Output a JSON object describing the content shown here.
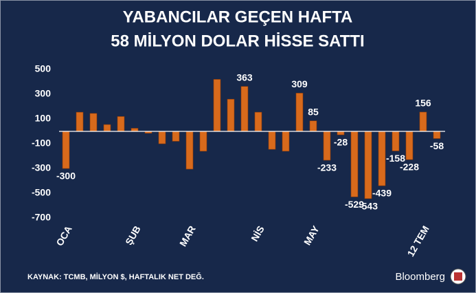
{
  "chart_data": {
    "type": "bar",
    "title": "YABANCILAR GEÇEN HAFTA",
    "subtitle": "58 MİLYON DOLAR HİSSE SATTI",
    "source": "KAYNAK: TCMB, MİLYON $, HAFTALIK NET DEĞ.",
    "brand": "Bloomberg",
    "categories": [
      "OCA",
      null,
      null,
      null,
      null,
      "ŞUB",
      null,
      null,
      null,
      "MAR",
      null,
      null,
      null,
      null,
      "NİS",
      null,
      null,
      null,
      "MAY",
      null,
      null,
      null,
      null,
      null,
      null,
      null,
      "12 TEM",
      null
    ],
    "values": [
      -300,
      155,
      145,
      55,
      120,
      25,
      -15,
      -100,
      -80,
      -305,
      -160,
      420,
      260,
      363,
      155,
      -145,
      -160,
      309,
      85,
      -233,
      -28,
      -529,
      -543,
      -439,
      -158,
      -228,
      156,
      -58
    ],
    "value_labels": [
      "-300",
      null,
      null,
      null,
      null,
      null,
      null,
      null,
      null,
      null,
      null,
      null,
      null,
      "363",
      null,
      null,
      null,
      "309",
      "85",
      "-233",
      "-28",
      "-529",
      "-543",
      "-439",
      "-158",
      "-228",
      "156",
      "-58"
    ],
    "color": "#d86a1c",
    "ylim": [
      -700,
      500
    ],
    "yticks": [
      -700,
      -500,
      -300,
      -100,
      100,
      300,
      500
    ]
  }
}
